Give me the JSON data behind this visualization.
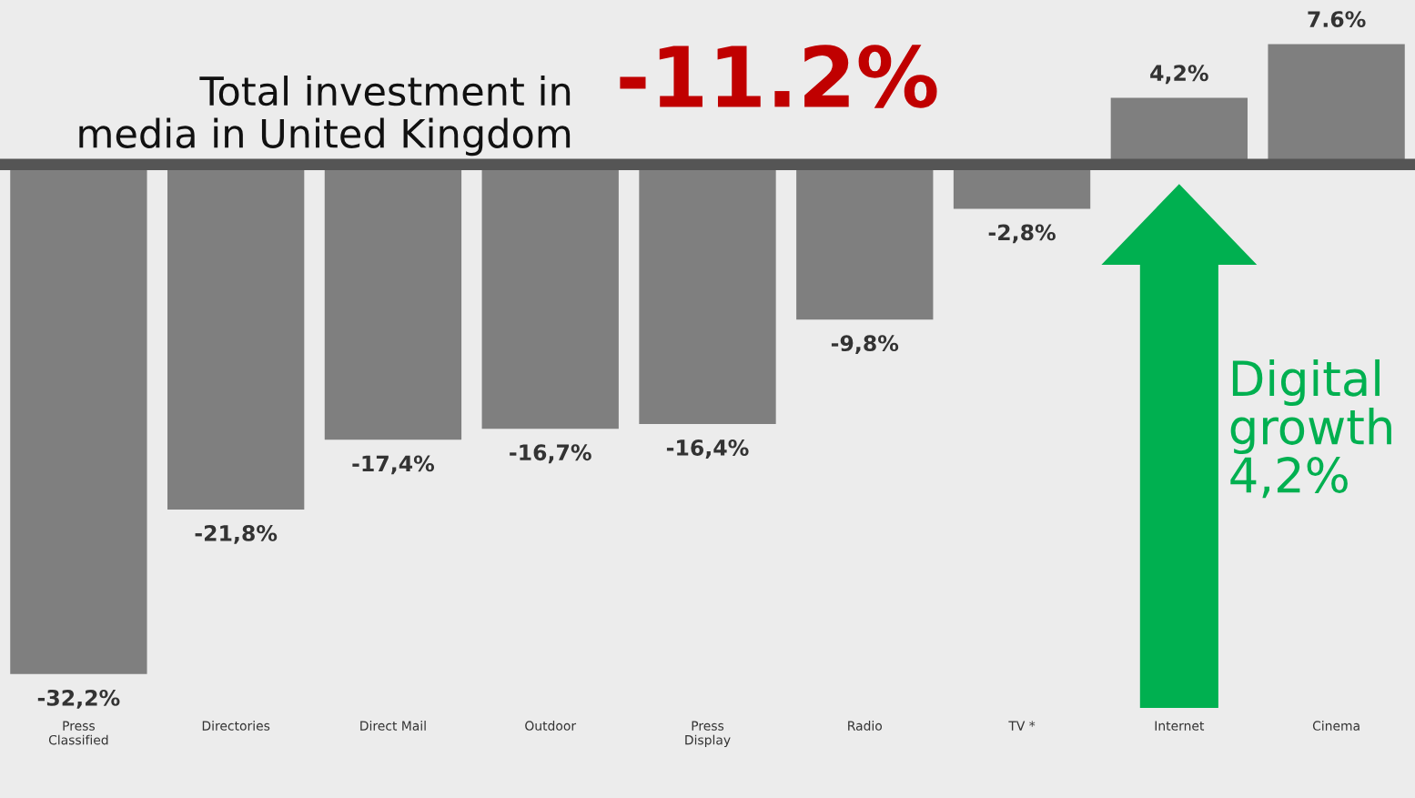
{
  "chart_data": {
    "type": "bar",
    "title": "Total investment in\nmedia in United Kingdom",
    "categories": [
      "Press\nClassified",
      "Directories",
      "Direct Mail",
      "Outdoor",
      "Press\nDisplay",
      "Radio",
      "TV *",
      "Internet",
      "Cinema"
    ],
    "values": [
      -32.2,
      -21.8,
      -17.4,
      -16.7,
      -16.4,
      -9.8,
      -2.8,
      4.2,
      7.6
    ],
    "value_labels": [
      "-32,2%",
      "-21,8%",
      "-17,4%",
      "-16,7%",
      "-16,4%",
      "-9,8%",
      "-2,8%",
      "4,2%",
      "7.6%"
    ],
    "color": "#7f7f7f",
    "grid": false,
    "legend": false,
    "tick_labels": "x",
    "annotations": [
      "-11.2%",
      "Digital\ngrowth\n4,2%"
    ]
  }
}
